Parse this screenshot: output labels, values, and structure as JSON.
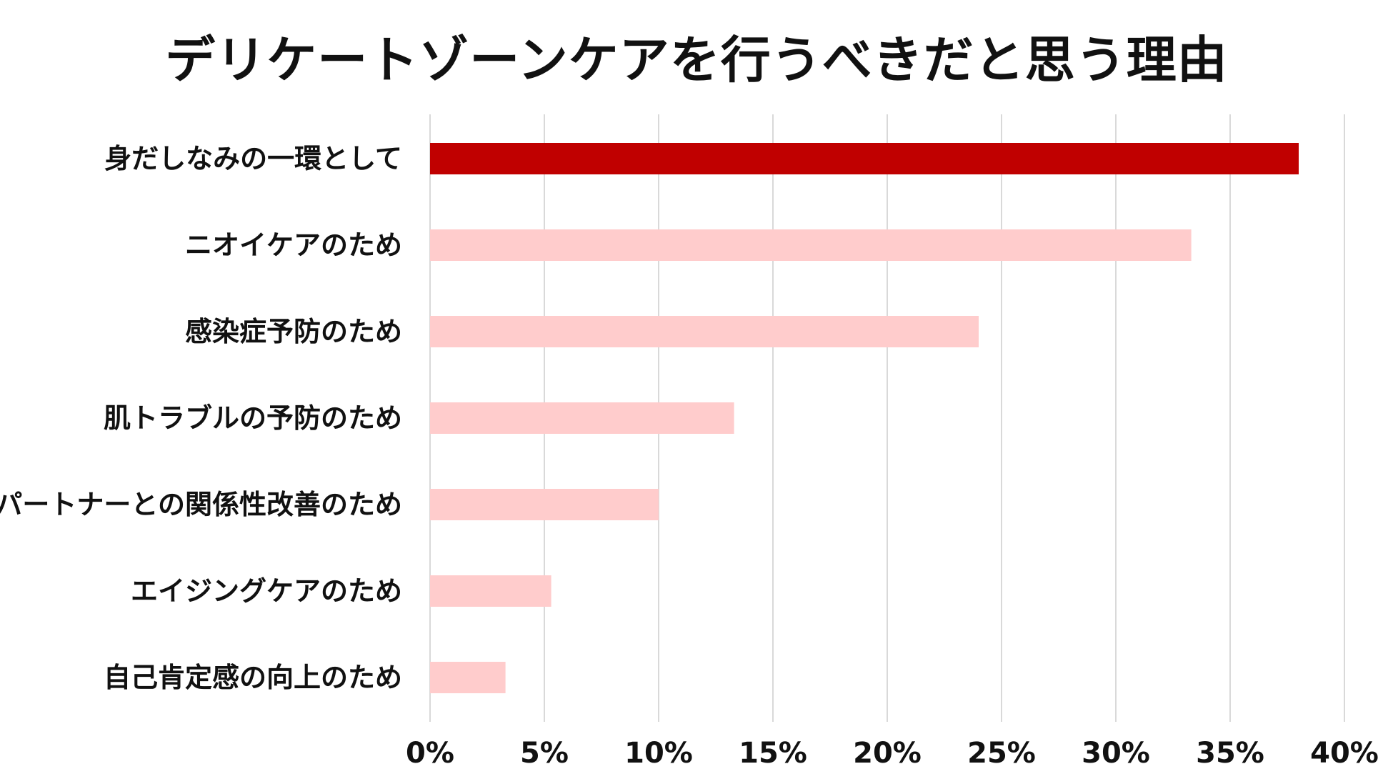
{
  "chart_data": {
    "type": "bar",
    "orientation": "horizontal",
    "title": "デリケートゾーンケアを行うべきだと思う理由",
    "xlabel": "",
    "ylabel": "",
    "categories": [
      "身だしなみの一環として",
      "ニオイケアのため",
      "感染症予防のため",
      "肌トラブルの予防のため",
      "パートナーとの関係性改善のため",
      "エイジングケアのため",
      "自己肯定感の向上のため"
    ],
    "values": [
      38.0,
      33.3,
      24.0,
      13.3,
      10.0,
      5.3,
      3.3
    ],
    "xlim": [
      0,
      40
    ],
    "ticks": [
      "0%",
      "5%",
      "10%",
      "15%",
      "20%",
      "25%",
      "30%",
      "35%",
      "40%"
    ],
    "grid": "vertical",
    "legend": "none",
    "colors": {
      "highlight": "#c00000",
      "bar": "#ffcccc",
      "grid": "#d9d9d9",
      "text": "#111111"
    }
  }
}
